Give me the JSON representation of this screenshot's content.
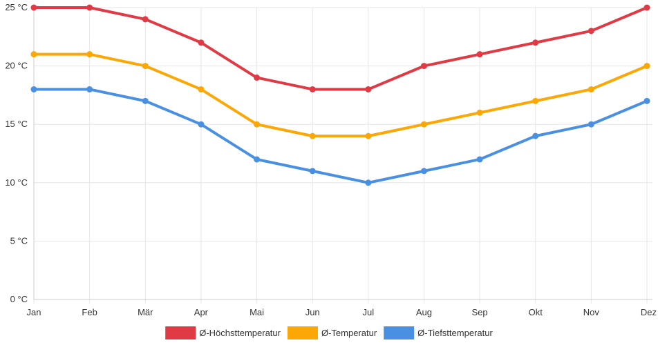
{
  "chart_data": {
    "type": "line",
    "categories": [
      "Jan",
      "Feb",
      "Mär",
      "Apr",
      "Mai",
      "Jun",
      "Jul",
      "Aug",
      "Sep",
      "Okt",
      "Nov",
      "Dez"
    ],
    "ylim": [
      0,
      25
    ],
    "yticks": [
      0,
      5,
      10,
      15,
      20,
      25
    ],
    "y_unit": "°C",
    "grid": true,
    "legend_position": "bottom",
    "series": [
      {
        "name": "Ø-Höchsttemperatur",
        "color": "#e03a45",
        "values": [
          25,
          25,
          24,
          22,
          19,
          18,
          18,
          20,
          21,
          22,
          23,
          25
        ]
      },
      {
        "name": "Ø-Temperatur",
        "color": "#fba705",
        "values": [
          21,
          21,
          20,
          18,
          15,
          14,
          14,
          15,
          16,
          17,
          18,
          20
        ]
      },
      {
        "name": "Ø-Tiefsttemperatur",
        "color": "#4a90e2",
        "values": [
          18,
          18,
          17,
          15,
          12,
          11,
          10,
          11,
          12,
          14,
          15,
          17
        ]
      }
    ]
  }
}
